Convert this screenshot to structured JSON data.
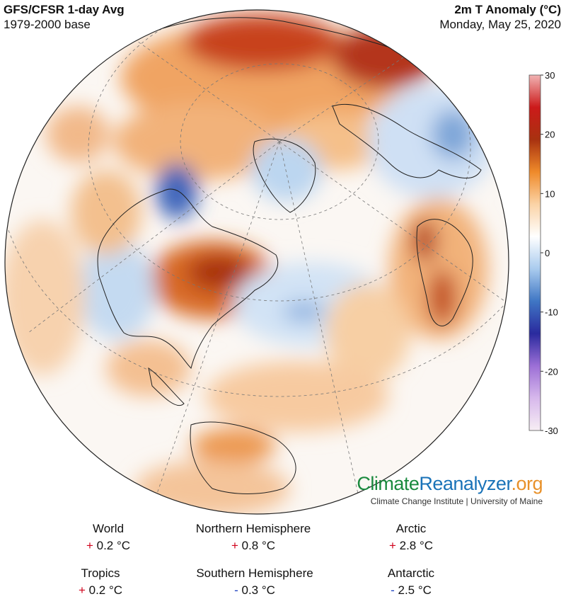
{
  "header": {
    "left_title": "GFS/CFSR 1-day Avg",
    "left_subtitle": "1979-2000 base",
    "right_title": "2m T Anomaly (°C)",
    "right_subtitle": "Monday, May 25, 2020"
  },
  "legend": {
    "ticks": [
      "30",
      "20",
      "10",
      "0",
      "-10",
      "-20",
      "-30"
    ],
    "range": [
      -30,
      30
    ],
    "colors": [
      "#f7eef4",
      "#d7b8ec",
      "#9c6fd6",
      "#2a2a9e",
      "#3f76c4",
      "#a9cbee",
      "#ffffff",
      "#fbd3a6",
      "#ef8a2a",
      "#a83210",
      "#cc1a1a",
      "#f1b3b3"
    ]
  },
  "brand": {
    "name_part1": "Climate",
    "name_part2": "Reanalyzer",
    "name_part3": ".org",
    "subtitle": "Climate Change Institute | University of Maine"
  },
  "stats": [
    {
      "region": "World",
      "sign": "+",
      "value": "0.2 °C"
    },
    {
      "region": "Northern Hemisphere",
      "sign": "+",
      "value": "0.8 °C"
    },
    {
      "region": "Arctic",
      "sign": "+",
      "value": "2.8 °C"
    },
    {
      "region": "Tropics",
      "sign": "+",
      "value": "0.2 °C"
    },
    {
      "region": "Southern Hemisphere",
      "sign": "-",
      "value": "0.3 °C"
    },
    {
      "region": "Antarctic",
      "sign": "-",
      "value": "2.5 °C"
    }
  ]
}
